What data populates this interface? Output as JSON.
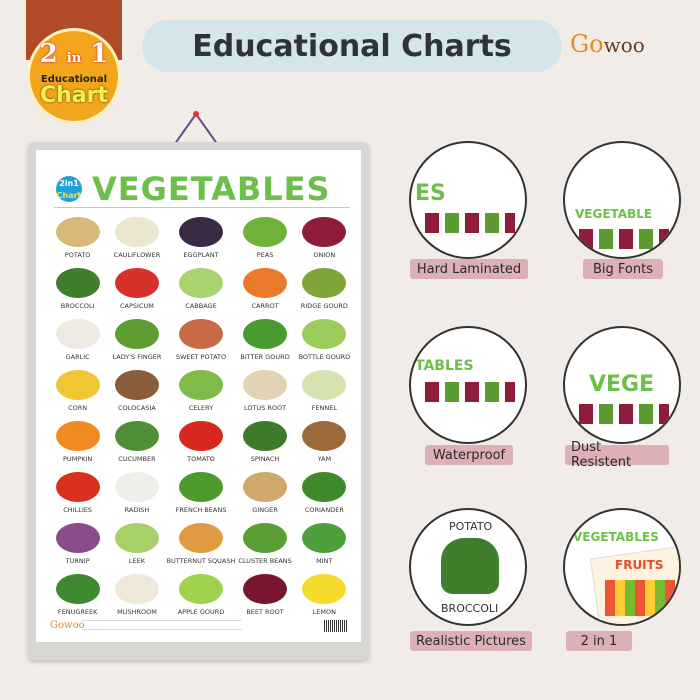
{
  "badge": {
    "line1": "2",
    "line1b": "in",
    "line1c": "1",
    "line2": "Educational",
    "line3": "Chart"
  },
  "header": {
    "title": "Educational Charts"
  },
  "brand": {
    "logo_a": "Go",
    "logo_b": "woo"
  },
  "chart": {
    "mini_badge": {
      "top": "2in1",
      "bottom": "Chart"
    },
    "title": "VEGETABLES",
    "footer_logo": "Gowoo",
    "items": [
      {
        "label": "POTATO",
        "color": "#d9b87a"
      },
      {
        "label": "CAULIFLOWER",
        "color": "#eae6cf"
      },
      {
        "label": "EGGPLANT",
        "color": "#3a2a44"
      },
      {
        "label": "PEAS",
        "color": "#6fb23a"
      },
      {
        "label": "ONION",
        "color": "#8e1c3a"
      },
      {
        "label": "BROCCOLI",
        "color": "#3f7e2a"
      },
      {
        "label": "CAPSICUM",
        "color": "#d8302a"
      },
      {
        "label": "CABBAGE",
        "color": "#a9d36e"
      },
      {
        "label": "CARROT",
        "color": "#ea7a2b"
      },
      {
        "label": "RIDGE GOURD",
        "color": "#7ea43a"
      },
      {
        "label": "GARLIC",
        "color": "#eeeae2"
      },
      {
        "label": "LADY'S FINGER",
        "color": "#5f9c32"
      },
      {
        "label": "SWEET POTATO",
        "color": "#c86a45"
      },
      {
        "label": "BITTER GOURD",
        "color": "#4a9a30"
      },
      {
        "label": "BOTTLE GOURD",
        "color": "#9ccd5a"
      },
      {
        "label": "CORN",
        "color": "#f1c633"
      },
      {
        "label": "COLOCASIA",
        "color": "#8a5e3a"
      },
      {
        "label": "CELERY",
        "color": "#7fba4a"
      },
      {
        "label": "LOTUS ROOT",
        "color": "#e3d2b4"
      },
      {
        "label": "FENNEL",
        "color": "#d6e2b0"
      },
      {
        "label": "PUMPKIN",
        "color": "#f08a20"
      },
      {
        "label": "CUCUMBER",
        "color": "#4f8f35"
      },
      {
        "label": "TOMATO",
        "color": "#d8281e"
      },
      {
        "label": "SPINACH",
        "color": "#3d7a2a"
      },
      {
        "label": "YAM",
        "color": "#9c6a3a"
      },
      {
        "label": "CHILLIES",
        "color": "#d9301f"
      },
      {
        "label": "RADISH",
        "color": "#f0eee8"
      },
      {
        "label": "FRENCH BEANS",
        "color": "#4c9a2e"
      },
      {
        "label": "GINGER",
        "color": "#d0a86a"
      },
      {
        "label": "CORIANDER",
        "color": "#3e8a2a"
      },
      {
        "label": "TURNIP",
        "color": "#8a4a8c"
      },
      {
        "label": "LEEK",
        "color": "#a7cf6a"
      },
      {
        "label": "BUTTERNUT SQUASH",
        "color": "#e09a42"
      },
      {
        "label": "CLUSTER BEANS",
        "color": "#5c9e36"
      },
      {
        "label": "MINT",
        "color": "#4fa03a"
      },
      {
        "label": "FENUGREEK",
        "color": "#3f8a2e"
      },
      {
        "label": "MUSHROOM",
        "color": "#efe8da"
      },
      {
        "label": "APPLE GOURD",
        "color": "#9fd24e"
      },
      {
        "label": "BEET ROOT",
        "color": "#7a1530"
      },
      {
        "label": "LEMON",
        "color": "#f6dc2a"
      }
    ]
  },
  "features": [
    {
      "label": "Hard Laminated",
      "inner": "ES"
    },
    {
      "label": "Big Fonts",
      "inner": "VEGETABLE"
    },
    {
      "label": "Waterproof",
      "inner": "TABLES"
    },
    {
      "label": "Dust Resistent",
      "inner": "VEGE"
    },
    {
      "label": "Realistic Pictures",
      "inner_top": "POTATO",
      "inner_bottom": "BROCCOLI"
    },
    {
      "label": "2 in 1",
      "inner": "VEGETABLES",
      "inner2": "FRUITS"
    }
  ],
  "colors": {
    "accent_green": "#6cc04a",
    "pill": "#dcb0b5",
    "header_pill": "#d4e6ec",
    "badge": "#f4a51c"
  }
}
